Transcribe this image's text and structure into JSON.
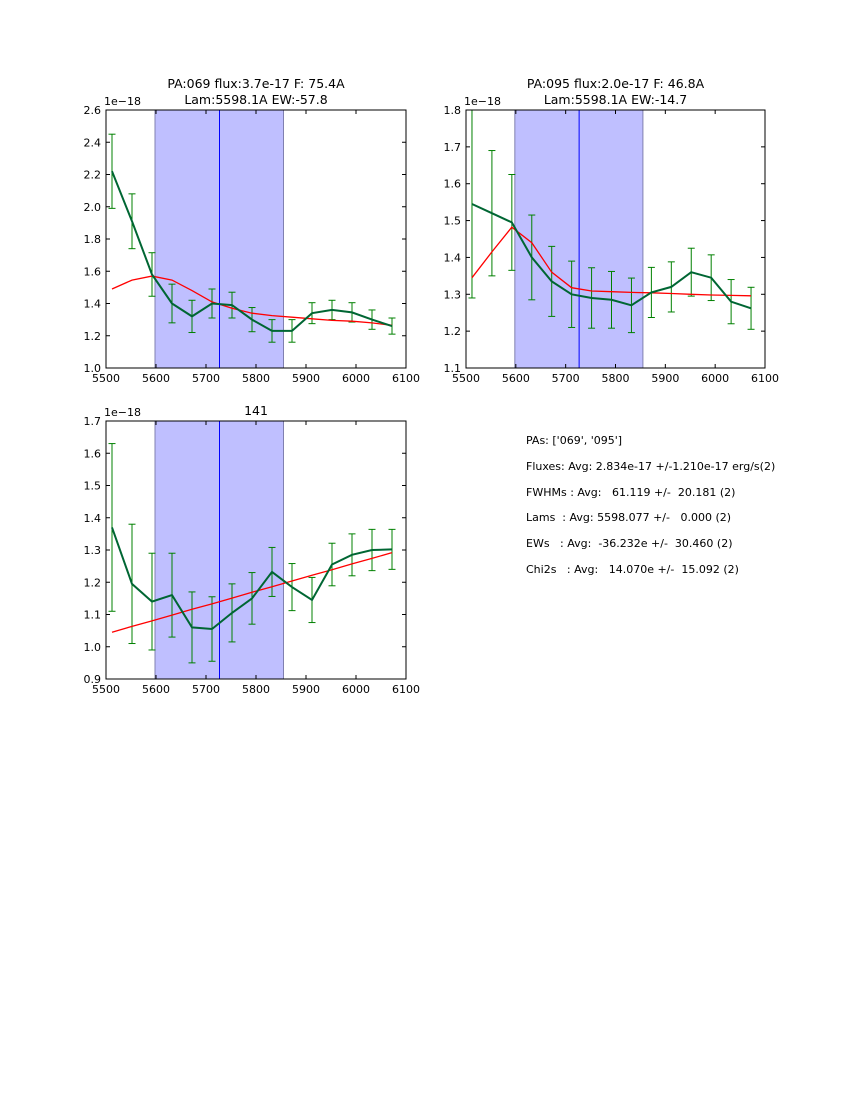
{
  "chart_data": [
    {
      "type": "line",
      "title": "PA:069 flux:3.7e-17 F: 75.4A\nLam:5598.1A EW:-57.8",
      "title_lines": [
        "PA:069 flux:3.7e-17 F: 75.4A",
        "Lam:5598.1A EW:-57.8"
      ],
      "offset_label": "1e−18",
      "xlim": [
        5500,
        6100
      ],
      "ylim": [
        1.0,
        2.6
      ],
      "xticks": [
        5500,
        5600,
        5700,
        5800,
        5900,
        6000,
        6100
      ],
      "yticks": [
        1.0,
        1.2,
        1.4,
        1.6,
        1.8,
        2.0,
        2.2,
        2.4,
        2.6
      ],
      "ytick_decimals": 1,
      "shaded_region": [
        5598,
        5855
      ],
      "vline": 5727,
      "x": [
        5512,
        5552,
        5592,
        5632,
        5672,
        5712,
        5752,
        5792,
        5832,
        5872,
        5912,
        5952,
        5992,
        6032,
        6072
      ],
      "series": [
        {
          "name": "data",
          "color": "#006633",
          "values": [
            2.22,
            1.91,
            1.58,
            1.4,
            1.32,
            1.4,
            1.39,
            1.3,
            1.23,
            1.23,
            1.34,
            1.36,
            1.345,
            1.3,
            1.26
          ],
          "errors": [
            0.23,
            0.17,
            0.135,
            0.12,
            0.1,
            0.09,
            0.08,
            0.075,
            0.07,
            0.07,
            0.065,
            0.06,
            0.06,
            0.06,
            0.05
          ],
          "error_color": "#008000"
        },
        {
          "name": "fit",
          "color": "#ff0000",
          "values": [
            1.49,
            1.545,
            1.57,
            1.545,
            1.48,
            1.41,
            1.37,
            1.34,
            1.325,
            1.315,
            1.305,
            1.295,
            1.29,
            1.28,
            1.265
          ]
        }
      ]
    },
    {
      "type": "line",
      "title": "PA:095 flux:2.0e-17 F: 46.8A\nLam:5598.1A EW:-14.7",
      "title_lines": [
        "PA:095 flux:2.0e-17 F: 46.8A",
        "Lam:5598.1A EW:-14.7"
      ],
      "offset_label": "1e−18",
      "xlim": [
        5500,
        6100
      ],
      "ylim": [
        1.1,
        1.8
      ],
      "xticks": [
        5500,
        5600,
        5700,
        5800,
        5900,
        6000,
        6100
      ],
      "yticks": [
        1.1,
        1.2,
        1.3,
        1.4,
        1.5,
        1.6,
        1.7,
        1.8
      ],
      "ytick_decimals": 1,
      "shaded_region": [
        5598,
        5855
      ],
      "vline": 5727,
      "x": [
        5512,
        5552,
        5592,
        5632,
        5672,
        5712,
        5752,
        5792,
        5832,
        5872,
        5912,
        5952,
        5992,
        6032,
        6072
      ],
      "series": [
        {
          "name": "data",
          "color": "#006633",
          "values": [
            1.545,
            1.52,
            1.495,
            1.4,
            1.335,
            1.3,
            1.29,
            1.285,
            1.27,
            1.305,
            1.32,
            1.36,
            1.345,
            1.28,
            1.262
          ],
          "errors": [
            0.255,
            0.17,
            0.13,
            0.115,
            0.095,
            0.09,
            0.082,
            0.077,
            0.074,
            0.068,
            0.068,
            0.065,
            0.062,
            0.06,
            0.057
          ],
          "error_color": "#008000"
        },
        {
          "name": "fit",
          "color": "#ff0000",
          "values": [
            1.345,
            1.415,
            1.482,
            1.44,
            1.36,
            1.318,
            1.309,
            1.307,
            1.305,
            1.304,
            1.302,
            1.3,
            1.298,
            1.297,
            1.296
          ]
        }
      ]
    },
    {
      "type": "line",
      "title": "141",
      "title_lines": [
        "141"
      ],
      "offset_label": "1e−18",
      "xlim": [
        5500,
        6100
      ],
      "ylim": [
        0.9,
        1.7
      ],
      "xticks": [
        5500,
        5600,
        5700,
        5800,
        5900,
        6000,
        6100
      ],
      "yticks": [
        0.9,
        1.0,
        1.1,
        1.2,
        1.3,
        1.4,
        1.5,
        1.6,
        1.7
      ],
      "ytick_decimals": 1,
      "shaded_region": [
        5598,
        5855
      ],
      "vline": 5727,
      "x": [
        5512,
        5552,
        5592,
        5632,
        5672,
        5712,
        5752,
        5792,
        5832,
        5872,
        5912,
        5952,
        5992,
        6032,
        6072
      ],
      "series": [
        {
          "name": "data",
          "color": "#006633",
          "values": [
            1.37,
            1.195,
            1.14,
            1.16,
            1.06,
            1.055,
            1.105,
            1.15,
            1.232,
            1.185,
            1.145,
            1.255,
            1.285,
            1.3,
            1.302
          ],
          "errors": [
            0.26,
            0.185,
            0.15,
            0.13,
            0.11,
            0.1,
            0.09,
            0.08,
            0.076,
            0.073,
            0.07,
            0.066,
            0.065,
            0.064,
            0.062
          ],
          "error_color": "#008000"
        },
        {
          "name": "fit",
          "color": "#ff0000",
          "values": [
            1.045,
            1.063,
            1.08,
            1.098,
            1.116,
            1.133,
            1.151,
            1.169,
            1.186,
            1.204,
            1.222,
            1.239,
            1.257,
            1.274,
            1.292
          ]
        }
      ]
    }
  ],
  "stats": {
    "pas": "PAs: ['069', '095']",
    "fluxes": "Fluxes: Avg: 2.834e-17 +/-1.210e-17 erg/s(2)",
    "fwhms": "FWHMs : Avg:   61.119 +/-  20.181 (2)",
    "lams": "Lams  : Avg: 5598.077 +/-   0.000 (2)",
    "ews": "EWs   : Avg:  -36.232e +/-  30.460 (2)",
    "chi2s": "Chi2s   : Avg:   14.070e +/-  15.092 (2)"
  }
}
